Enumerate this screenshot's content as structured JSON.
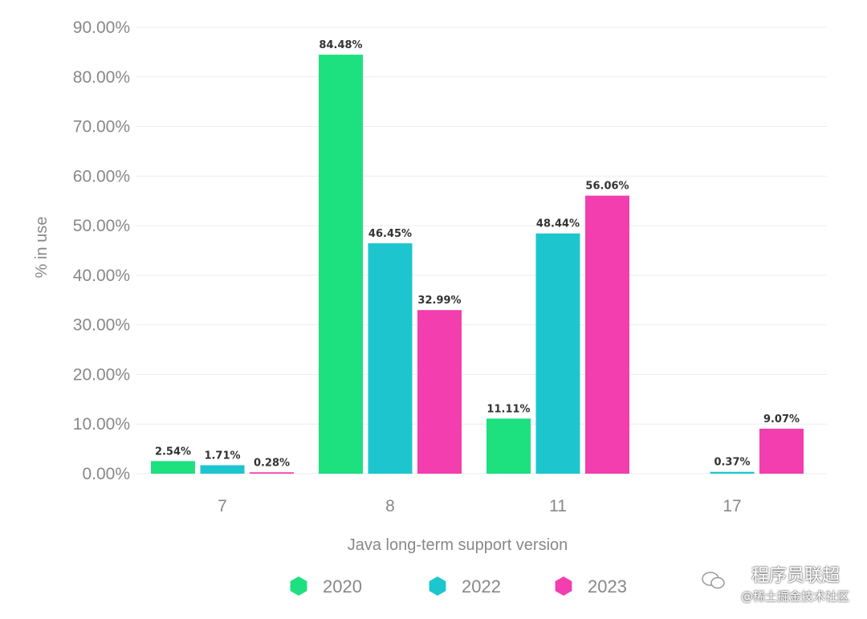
{
  "chart_data": {
    "type": "bar",
    "title": "",
    "xlabel": "Java long-term support version",
    "ylabel": "% in use",
    "ylim": [
      0,
      90
    ],
    "yticks": [
      "0.00%",
      "10.00%",
      "20.00%",
      "30.00%",
      "40.00%",
      "50.00%",
      "60.00%",
      "70.00%",
      "80.00%",
      "90.00%"
    ],
    "categories": [
      "7",
      "8",
      "11",
      "17"
    ],
    "series": [
      {
        "name": "2020",
        "color": "#1de07f",
        "values": [
          2.54,
          84.48,
          11.11,
          null
        ],
        "labels": [
          "2.54%",
          "84.48%",
          "11.11%",
          ""
        ]
      },
      {
        "name": "2022",
        "color": "#1dc6cf",
        "values": [
          1.71,
          46.45,
          48.44,
          0.37
        ],
        "labels": [
          "1.71%",
          "46.45%",
          "48.44%",
          "0.37%"
        ]
      },
      {
        "name": "2023",
        "color": "#f23eaf",
        "values": [
          0.28,
          32.99,
          56.06,
          9.07
        ],
        "labels": [
          "0.28%",
          "32.99%",
          "56.06%",
          "9.07%"
        ]
      }
    ],
    "grid": true,
    "legend": "bottom-center"
  },
  "watermark": {
    "line1": "程序员联超",
    "line2": "@稀土掘金技术社区"
  }
}
